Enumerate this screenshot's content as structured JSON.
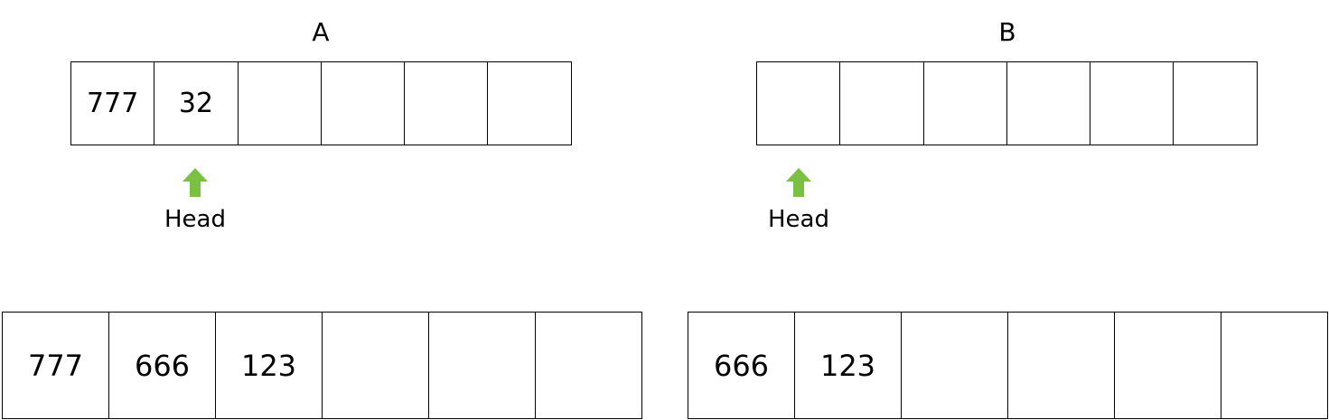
{
  "top": {
    "a": {
      "title": "A",
      "cells": [
        "777",
        "32",
        "",
        "",
        "",
        ""
      ],
      "pointer_label": "Head",
      "pointer_index": 1
    },
    "b": {
      "title": "B",
      "cells": [
        "",
        "",
        "",
        "",
        "",
        ""
      ],
      "pointer_label": "Head",
      "pointer_index": 0
    }
  },
  "bottom": {
    "a": {
      "cells": [
        "777",
        "666",
        "123",
        "",
        "",
        ""
      ]
    },
    "b": {
      "cells": [
        "666",
        "123",
        "",
        "",
        "",
        ""
      ]
    }
  },
  "colors": {
    "arrow": "#7ac143",
    "border": "#000000"
  },
  "icons": {
    "pointer": "up-arrow-icon"
  }
}
